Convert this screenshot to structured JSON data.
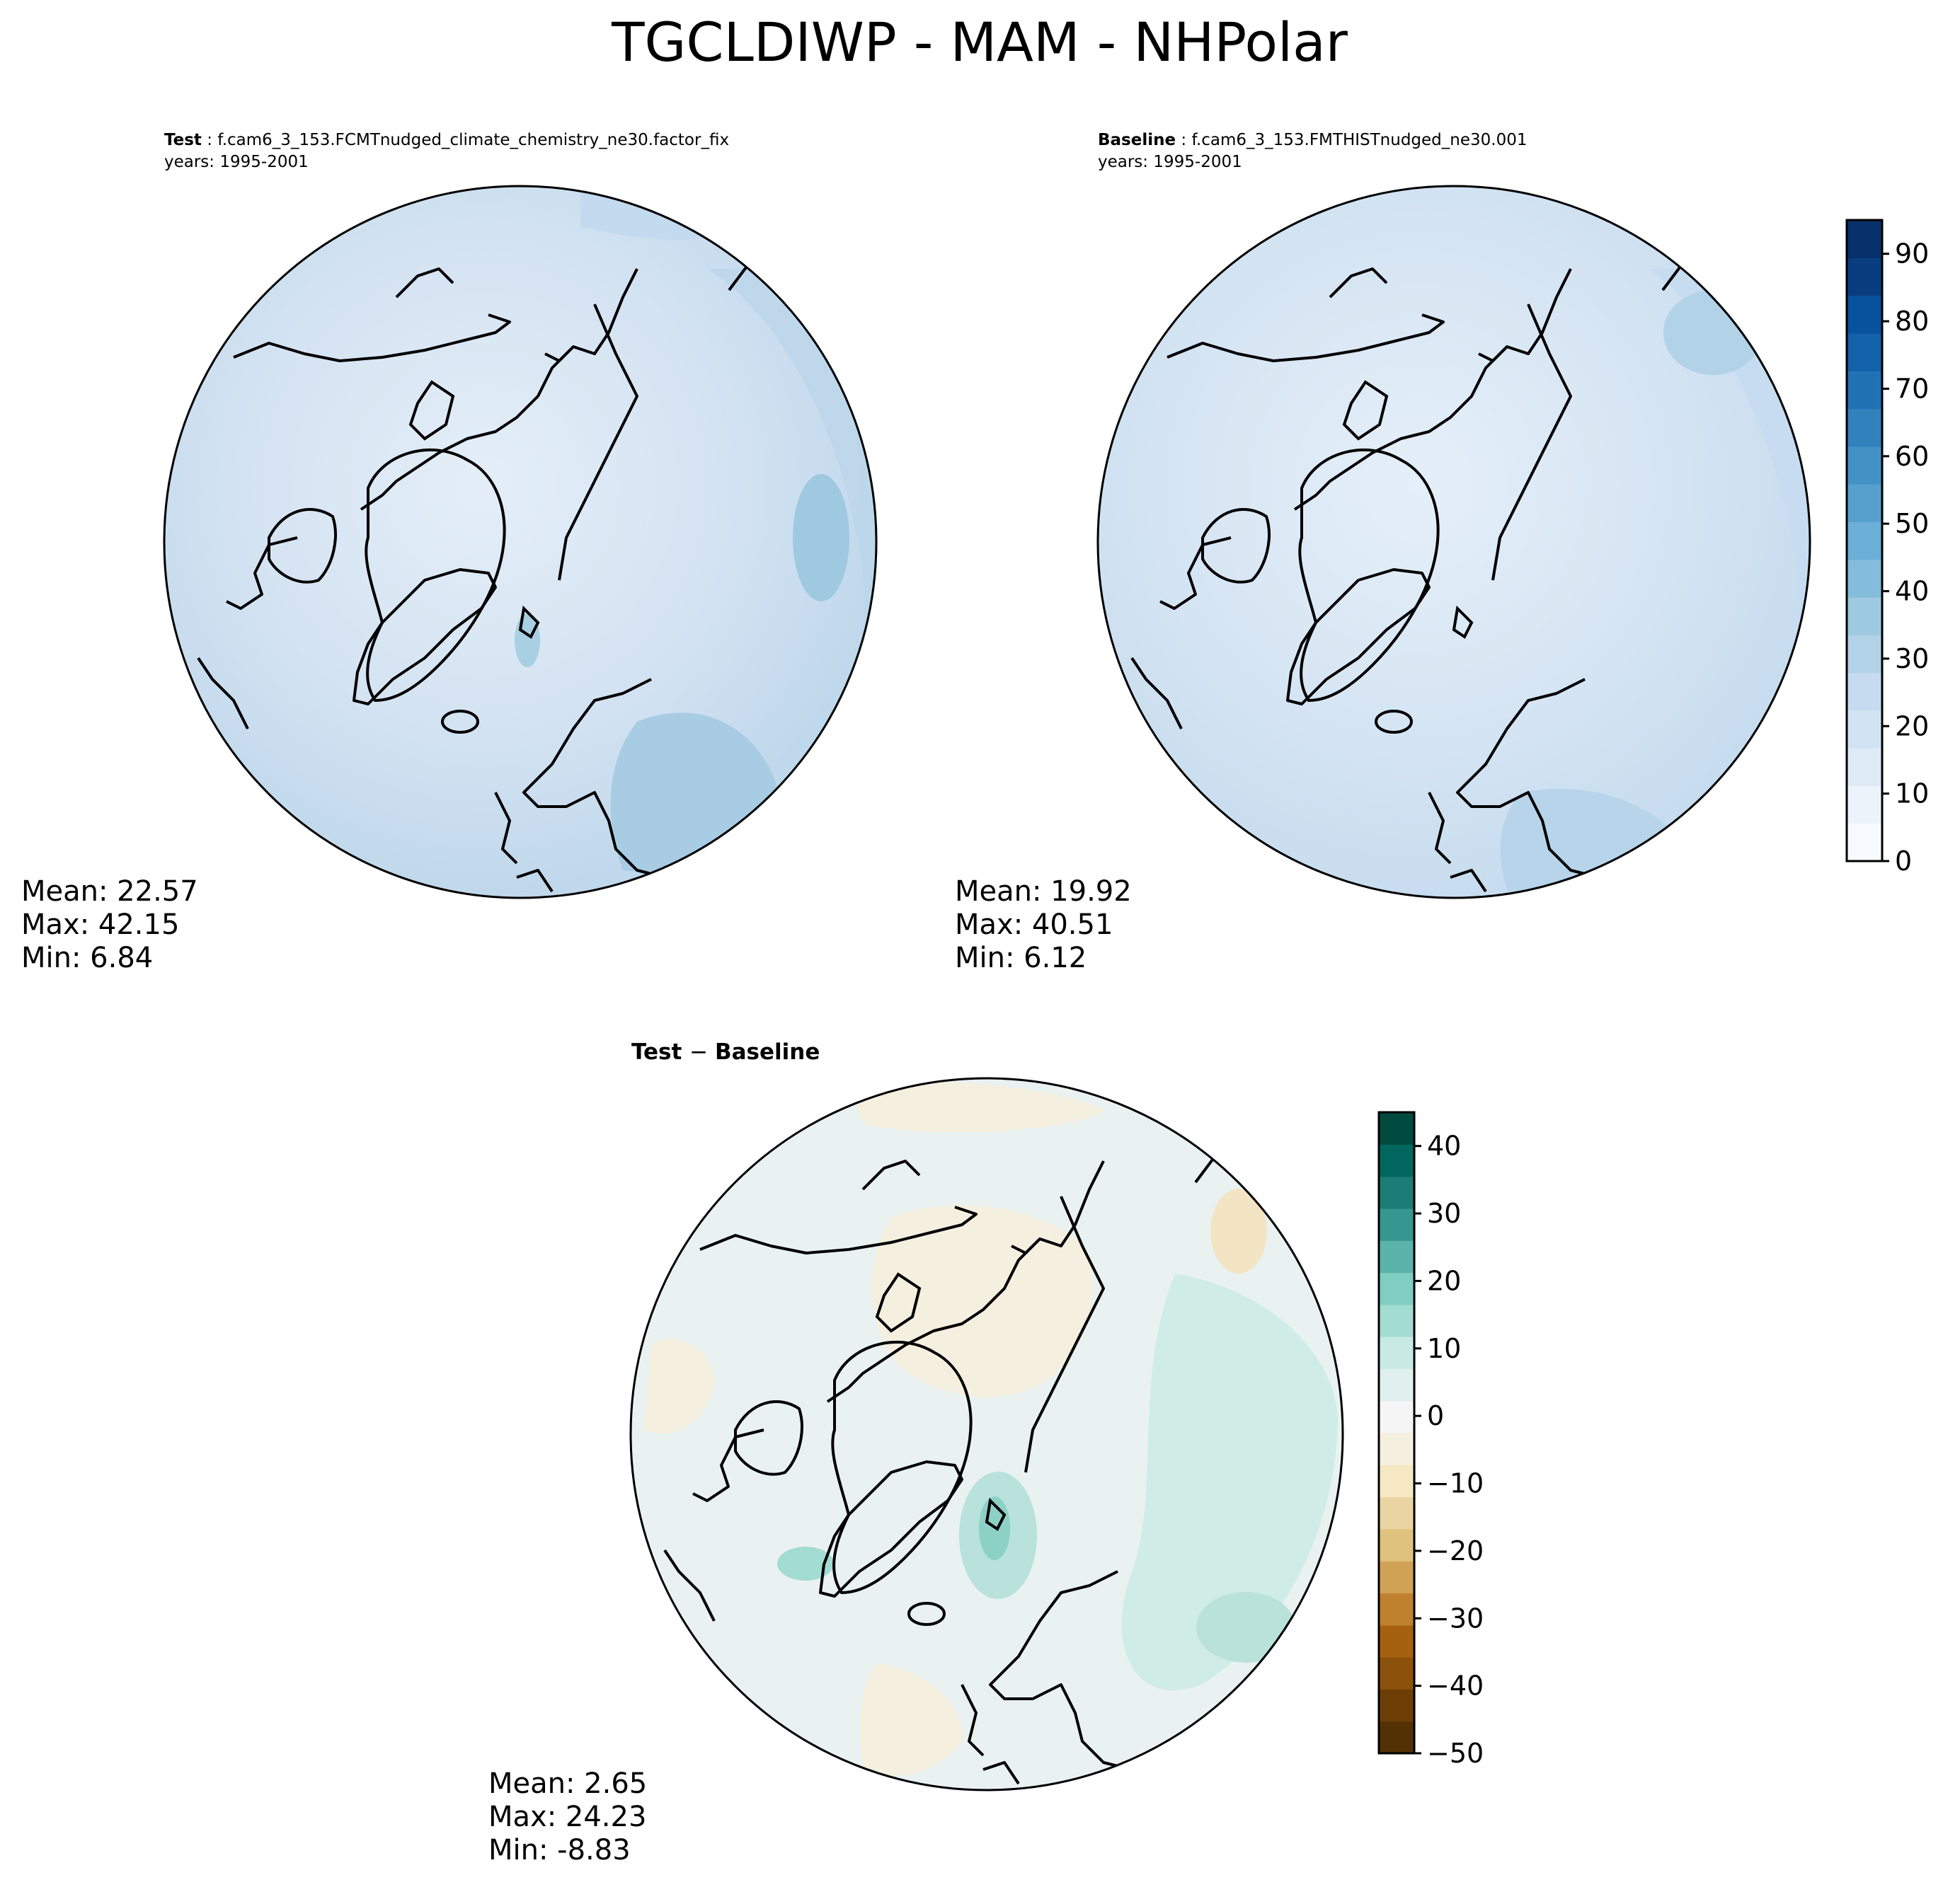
{
  "figure": {
    "title": "TGCLDIWP - MAM - NHPolar"
  },
  "panels": {
    "test": {
      "label": "Test",
      "case": ": f.cam6_3_153.FCMTnudged_climate_chemistry_ne30.factor_fix",
      "years": "years: 1995-2001",
      "stats": {
        "mean": "Mean: 22.57",
        "max": "Max: 42.15",
        "min": "Min:  6.84"
      }
    },
    "baseline": {
      "label": "Baseline",
      "case": ": f.cam6_3_153.FMTHISTnudged_ne30.001",
      "years": "years: 1995-2001",
      "stats": {
        "mean": "Mean: 19.92",
        "max": "Max: 40.51",
        "min": "Min:  6.12"
      }
    },
    "diff": {
      "title_test": "Test",
      "title_sep": " − ",
      "title_base": "Baseline",
      "stats": {
        "mean": "Mean:  2.65",
        "max": "Max: 24.23",
        "min": "Min: -8.83"
      }
    }
  },
  "colorbars": {
    "blues": {
      "range": [
        0,
        95
      ],
      "ticks": [
        "0",
        "10",
        "20",
        "30",
        "40",
        "50",
        "60",
        "70",
        "80",
        "90"
      ],
      "colors": [
        "#f7fbff",
        "#ebf3fb",
        "#deebf7",
        "#d2e3f3",
        "#c6dbef",
        "#b2d2e8",
        "#9ecae1",
        "#84bcdb",
        "#6baed6",
        "#57a0ce",
        "#4292c6",
        "#3181bd",
        "#2171b5",
        "#1361a9",
        "#08519c",
        "#083e80",
        "#08306b"
      ]
    },
    "brbg": {
      "range": [
        -50,
        45
      ],
      "ticks": [
        "−50",
        "−40",
        "−30",
        "−20",
        "−10",
        "0",
        "10",
        "20",
        "30",
        "40"
      ],
      "colors": [
        "#543005",
        "#6d3e06",
        "#8c510a",
        "#a6610f",
        "#bf812d",
        "#cfa256",
        "#dfc27d",
        "#ead4a2",
        "#f6e8c3",
        "#f5efe0",
        "#f5f5f5",
        "#e0f0ee",
        "#c7eae5",
        "#a3dcd2",
        "#80cdc1",
        "#5ab4ac",
        "#35978f",
        "#1b7d75",
        "#01665e",
        "#014a40"
      ]
    }
  },
  "map_colors": {
    "test": {
      "base": "#d4e3f2",
      "center": "#e4eef8",
      "outer": "#bcd6ea",
      "spot": "#9fc9e1"
    },
    "baseline": {
      "base": "#d6e5f3",
      "center": "#e5eff9",
      "outer": "#c5dbee",
      "spot": "#a9cde4"
    },
    "diff": {
      "base": "#e9f2f0",
      "warm": "#f5efe0",
      "cool": "#d0ece7",
      "spot": "#5ab4ac"
    }
  }
}
